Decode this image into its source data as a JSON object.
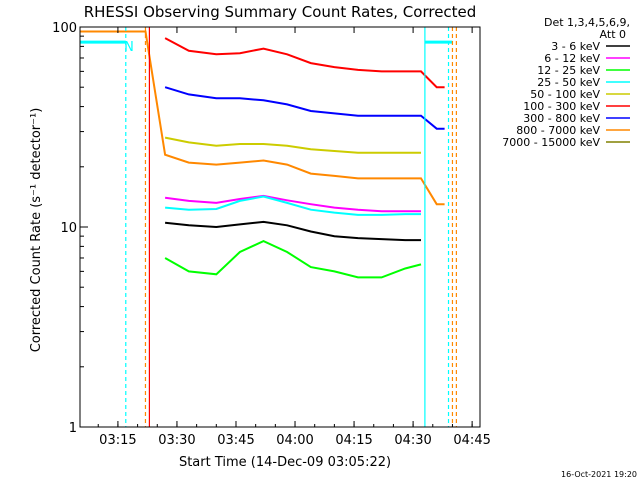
{
  "chart_data": {
    "type": "line",
    "title": "RHESSI Observing Summary Count Rates, Corrected",
    "xlabel": "Start Time (14-Dec-09 03:05:22)",
    "ylabel": "Corrected Count Rate (s⁻¹ detector⁻¹)",
    "y_scale": "log",
    "ylim": [
      1,
      100
    ],
    "y_ticks": [
      {
        "value": 1,
        "label": "1"
      },
      {
        "value": 10,
        "label": "10"
      },
      {
        "value": 100,
        "label": "100"
      }
    ],
    "xlim": [
      "03:05:22",
      "04:47:00"
    ],
    "x_ticks": [
      "03:15",
      "03:30",
      "03:45",
      "04:00",
      "04:15",
      "04:30",
      "04:45"
    ],
    "grid": false,
    "legend_position": "right",
    "legend_header": [
      "Det 1,3,4,5,6,9,",
      "Att 0"
    ],
    "series": [
      {
        "name": "3 - 6 keV",
        "color": "#000000",
        "x": [
          "03:27:00",
          "03:33:00",
          "03:40:00",
          "03:46:00",
          "03:52:00",
          "03:58:00",
          "04:04:00",
          "04:10:00",
          "04:16:00",
          "04:22:00",
          "04:28:00",
          "04:32:00"
        ],
        "y": [
          10.5,
          10.2,
          10.0,
          10.3,
          10.6,
          10.2,
          9.5,
          9.0,
          8.8,
          8.7,
          8.6,
          8.6
        ]
      },
      {
        "name": "6 - 12 keV",
        "color": "#ff00ff",
        "x": [
          "03:27:00",
          "03:33:00",
          "03:40:00",
          "03:46:00",
          "03:52:00",
          "03:58:00",
          "04:04:00",
          "04:10:00",
          "04:16:00",
          "04:22:00",
          "04:28:00",
          "04:32:00"
        ],
        "y": [
          14.0,
          13.5,
          13.2,
          13.8,
          14.3,
          13.6,
          13.0,
          12.5,
          12.2,
          12.0,
          12.0,
          12.0
        ]
      },
      {
        "name": "12 - 25 keV",
        "color": "#00ff00",
        "x": [
          "03:27:00",
          "03:33:00",
          "03:40:00",
          "03:46:00",
          "03:52:00",
          "03:58:00",
          "04:04:00",
          "04:10:00",
          "04:16:00",
          "04:22:00",
          "04:28:00",
          "04:32:00"
        ],
        "y": [
          7.0,
          6.0,
          5.8,
          7.5,
          8.5,
          7.5,
          6.3,
          6.0,
          5.6,
          5.6,
          6.2,
          6.5
        ]
      },
      {
        "name": "25 - 50 keV",
        "color": "#00ffff",
        "x": [
          "03:27:00",
          "03:33:00",
          "03:40:00",
          "03:46:00",
          "03:52:00",
          "03:58:00",
          "04:04:00",
          "04:10:00",
          "04:16:00",
          "04:22:00",
          "04:28:00",
          "04:32:00"
        ],
        "y": [
          12.5,
          12.2,
          12.3,
          13.5,
          14.2,
          13.2,
          12.2,
          11.8,
          11.5,
          11.5,
          11.6,
          11.6
        ]
      },
      {
        "name": "50 - 100 keV",
        "color": "#cccc00",
        "x": [
          "03:27:00",
          "03:33:00",
          "03:40:00",
          "03:46:00",
          "03:52:00",
          "03:58:00",
          "04:04:00",
          "04:10:00",
          "04:16:00",
          "04:22:00",
          "04:28:00",
          "04:32:00"
        ],
        "y": [
          28.0,
          26.5,
          25.5,
          26.0,
          26.0,
          25.5,
          24.5,
          24.0,
          23.5,
          23.5,
          23.5,
          23.5
        ]
      },
      {
        "name": "100 - 300 keV",
        "color": "#ff0000",
        "x": [
          "03:27:00",
          "03:33:00",
          "03:40:00",
          "03:46:00",
          "03:52:00",
          "03:58:00",
          "04:04:00",
          "04:10:00",
          "04:16:00",
          "04:22:00",
          "04:28:00",
          "04:32:00",
          "04:36:00",
          "04:38:00"
        ],
        "y": [
          88.0,
          76.0,
          73.0,
          74.0,
          78.0,
          73.0,
          66.0,
          63.0,
          61.0,
          60.0,
          60.0,
          60.0,
          50.0,
          50.0
        ]
      },
      {
        "name": "300 - 800 keV",
        "color": "#0000ff",
        "x": [
          "03:27:00",
          "03:33:00",
          "03:40:00",
          "03:46:00",
          "03:52:00",
          "03:58:00",
          "04:04:00",
          "04:10:00",
          "04:16:00",
          "04:22:00",
          "04:28:00",
          "04:32:00",
          "04:36:00",
          "04:38:00"
        ],
        "y": [
          50.0,
          46.0,
          44.0,
          44.0,
          43.0,
          41.0,
          38.0,
          37.0,
          36.0,
          36.0,
          36.0,
          36.0,
          31.0,
          31.0
        ]
      },
      {
        "name": "800 - 7000 keV",
        "color": "#ff8800",
        "x": [
          "03:05:22",
          "03:22:00",
          "03:27:00",
          "03:33:00",
          "03:40:00",
          "03:46:00",
          "03:52:00",
          "03:58:00",
          "04:04:00",
          "04:10:00",
          "04:16:00",
          "04:22:00",
          "04:28:00",
          "04:32:00",
          "04:36:00",
          "04:38:00"
        ],
        "y": [
          95.0,
          95.0,
          23.0,
          21.0,
          20.5,
          21.0,
          21.5,
          20.5,
          18.5,
          18.0,
          17.5,
          17.5,
          17.5,
          17.5,
          13.0,
          13.0
        ]
      },
      {
        "name": "7000 - 15000 keV",
        "color": "#808000",
        "x": [],
        "y": []
      }
    ],
    "attenuator_line": {
      "name": "N",
      "color": "#00ffff",
      "segments": [
        {
          "x": [
            "03:05:22",
            "03:17:00"
          ],
          "y": [
            84.0,
            84.0
          ]
        },
        {
          "x": [
            "04:33:00",
            "04:40:00"
          ],
          "y": [
            84.0,
            84.0
          ]
        }
      ]
    },
    "vertical_markers": [
      {
        "x": "03:17:00",
        "color": "#00ffff",
        "style": "dashed"
      },
      {
        "x": "03:22:00",
        "color": "#ff8800",
        "style": "dashed"
      },
      {
        "x": "03:23:00",
        "color": "#ff0000",
        "style": "solid"
      },
      {
        "x": "04:33:00",
        "color": "#00ffff",
        "style": "solid"
      },
      {
        "x": "04:39:00",
        "color": "#00ffff",
        "style": "dashed"
      },
      {
        "x": "04:40:00",
        "color": "#ff8800",
        "style": "dashed"
      },
      {
        "x": "04:41:00",
        "color": "#ff8800",
        "style": "dashed"
      }
    ],
    "annotations": [
      "N"
    ]
  },
  "footer": {
    "timestamp": "16-Oct-2021 19:20"
  }
}
